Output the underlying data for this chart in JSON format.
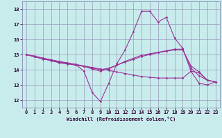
{
  "title": "",
  "xlabel": "Windchill (Refroidissement éolien,°C)",
  "ylabel": "",
  "background_color": "#c8ecec",
  "grid_color": "#9999bb",
  "line_color": "#993399",
  "xlim": [
    -0.5,
    23.5
  ],
  "ylim": [
    11.5,
    18.5
  ],
  "yticks": [
    12,
    13,
    14,
    15,
    16,
    17,
    18
  ],
  "xticks": [
    0,
    1,
    2,
    3,
    4,
    5,
    6,
    7,
    8,
    9,
    10,
    11,
    12,
    13,
    14,
    15,
    16,
    17,
    18,
    19,
    20,
    21,
    22,
    23
  ],
  "lines": [
    {
      "x": [
        0,
        1,
        2,
        3,
        4,
        5,
        6,
        7,
        8,
        9,
        10,
        11,
        12,
        13,
        14,
        15,
        16,
        17,
        18,
        19,
        20,
        21,
        22,
        23
      ],
      "y": [
        15.0,
        14.85,
        14.75,
        14.65,
        14.55,
        14.45,
        14.35,
        14.25,
        14.15,
        14.05,
        13.95,
        13.85,
        13.75,
        13.65,
        13.55,
        13.5,
        13.45,
        13.45,
        13.45,
        13.45,
        13.9,
        13.8,
        13.3,
        13.2
      ]
    },
    {
      "x": [
        0,
        1,
        2,
        3,
        4,
        5,
        6,
        7,
        8,
        9,
        10,
        11,
        12,
        13,
        14,
        15,
        16,
        17,
        18,
        19,
        20,
        21,
        22,
        23
      ],
      "y": [
        15.0,
        14.9,
        14.75,
        14.6,
        14.5,
        14.4,
        14.35,
        13.9,
        12.5,
        11.9,
        13.1,
        14.4,
        15.3,
        16.5,
        17.85,
        17.85,
        17.15,
        17.45,
        16.1,
        15.4,
        13.9,
        13.1,
        13.0,
        13.2
      ]
    },
    {
      "x": [
        0,
        1,
        2,
        3,
        4,
        5,
        6,
        7,
        8,
        9,
        10,
        11,
        12,
        13,
        14,
        15,
        16,
        17,
        18,
        19,
        20,
        21,
        22,
        23
      ],
      "y": [
        15.0,
        14.85,
        14.7,
        14.6,
        14.45,
        14.38,
        14.3,
        14.22,
        14.05,
        13.9,
        14.05,
        14.3,
        14.55,
        14.75,
        14.95,
        15.05,
        15.15,
        15.25,
        15.35,
        15.35,
        14.1,
        13.6,
        13.3,
        13.2
      ]
    },
    {
      "x": [
        0,
        1,
        2,
        3,
        4,
        5,
        6,
        7,
        8,
        9,
        10,
        11,
        12,
        13,
        14,
        15,
        16,
        17,
        18,
        19,
        20,
        21,
        22,
        23
      ],
      "y": [
        15.0,
        14.88,
        14.77,
        14.65,
        14.52,
        14.42,
        14.32,
        14.22,
        14.1,
        14.0,
        14.1,
        14.3,
        14.5,
        14.68,
        14.87,
        15.0,
        15.12,
        15.22,
        15.3,
        15.3,
        14.25,
        13.85,
        13.3,
        13.2
      ]
    }
  ]
}
